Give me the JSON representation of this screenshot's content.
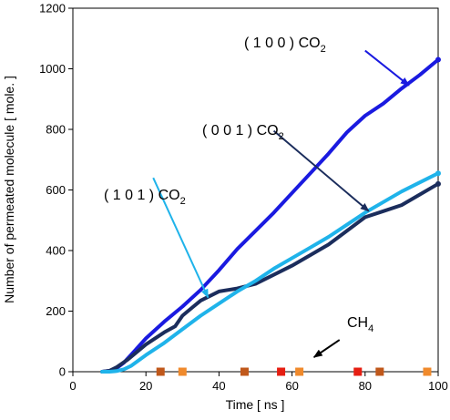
{
  "chart_data": {
    "type": "line",
    "xlabel": "Time [ ns ]",
    "ylabel": "Number of permeated molecule [ mole. ]",
    "xlim": [
      0,
      100
    ],
    "ylim": [
      0,
      1200
    ],
    "x_ticks": [
      "0",
      "20",
      "40",
      "60",
      "80",
      "100"
    ],
    "y_ticks": [
      "0",
      "200",
      "400",
      "600",
      "800",
      "1000",
      "1200"
    ],
    "grid": false,
    "legend": "none",
    "series": [
      {
        "color": "#1a1ae0",
        "x": [
          8,
          10,
          12,
          14,
          17,
          20,
          25,
          30,
          35,
          40,
          45,
          50,
          55,
          60,
          65,
          70,
          75,
          80,
          85,
          90,
          95,
          100
        ],
        "y": [
          0,
          3,
          12,
          30,
          70,
          110,
          165,
          215,
          270,
          335,
          405,
          465,
          525,
          590,
          655,
          720,
          790,
          845,
          885,
          935,
          980,
          1030
        ]
      },
      {
        "color": "#1b2d5c",
        "x": [
          8,
          10,
          12,
          15,
          20,
          25,
          28,
          30,
          33,
          35,
          40,
          45,
          50,
          55,
          60,
          65,
          70,
          75,
          80,
          85,
          90,
          95,
          100
        ],
        "y": [
          0,
          3,
          15,
          40,
          90,
          130,
          150,
          185,
          215,
          235,
          265,
          275,
          290,
          320,
          350,
          385,
          420,
          465,
          510,
          530,
          550,
          585,
          620
        ]
      },
      {
        "color": "#1fb3ea",
        "x": [
          8,
          10,
          12,
          14,
          16,
          20,
          25,
          30,
          35,
          40,
          45,
          50,
          55,
          60,
          65,
          70,
          75,
          80,
          85,
          90,
          95,
          100
        ],
        "y": [
          0,
          0,
          2,
          8,
          20,
          55,
          95,
          140,
          185,
          225,
          265,
          300,
          340,
          375,
          410,
          445,
          485,
          525,
          560,
          595,
          625,
          655
        ]
      }
    ],
    "ch4_markers": [
      {
        "x": 24,
        "color": "#c0581b"
      },
      {
        "x": 30,
        "color": "#f08a2c"
      },
      {
        "x": 47,
        "color": "#c0581b"
      },
      {
        "x": 57,
        "color": "#e61e12"
      },
      {
        "x": 62,
        "color": "#f08a2c"
      },
      {
        "x": 78,
        "color": "#e61e12"
      },
      {
        "x": 84,
        "color": "#c0581b"
      },
      {
        "x": 97,
        "color": "#f08a2c"
      }
    ],
    "annotations": [
      {
        "id": "a100",
        "text": "( 1 0 0 ) CO",
        "sub": "2",
        "arrow_color": "#1a1ae0",
        "arrow_from": [
          80,
          1060
        ],
        "arrow_to": [
          92,
          945
        ]
      },
      {
        "id": "a001",
        "text": "( 0 0 1 ) CO",
        "sub": "2",
        "arrow_color": "#1b2d5c",
        "arrow_from": [
          55,
          795
        ],
        "arrow_to": [
          81,
          530
        ]
      },
      {
        "id": "a101",
        "text": "( 1 0 1 ) CO",
        "sub": "2",
        "arrow_color": "#1fb3ea",
        "arrow_from": [
          22,
          640
        ],
        "arrow_to": [
          37,
          245
        ]
      },
      {
        "id": "ach4",
        "text": "CH",
        "sub": "4",
        "arrow_color": "#000000",
        "arrow_from": [
          73,
          105
        ],
        "arrow_to": [
          66,
          48
        ]
      }
    ]
  }
}
